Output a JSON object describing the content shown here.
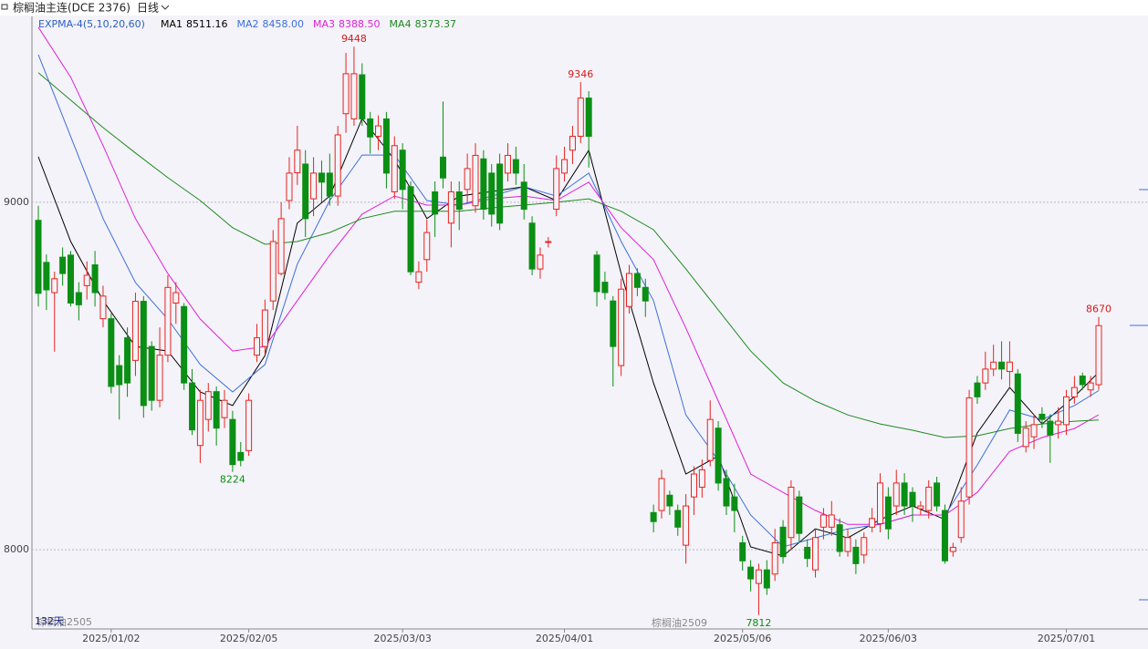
{
  "header": {
    "title": "棕榈油主连(DCE 2376)",
    "period": "日线"
  },
  "chart_data": {
    "type": "candlestick",
    "indicator": "EXPMA-4(5,10,20,60)",
    "categories": [
      null,
      null,
      null,
      null,
      null,
      null,
      null,
      null,
      null,
      "2025/01/02",
      null,
      null,
      null,
      null,
      null,
      null,
      null,
      null,
      null,
      null,
      null,
      null,
      null,
      null,
      null,
      null,
      "2025/02/05",
      null,
      null,
      null,
      null,
      null,
      null,
      null,
      null,
      null,
      null,
      null,
      null,
      null,
      null,
      null,
      null,
      null,
      null,
      "2025/03/03",
      null,
      null,
      null,
      null,
      null,
      null,
      null,
      null,
      null,
      null,
      null,
      null,
      null,
      null,
      null,
      null,
      null,
      null,
      null,
      "2025/04/01",
      null,
      null,
      null,
      null,
      null,
      null,
      null,
      null,
      null,
      null,
      null,
      null,
      null,
      null,
      null,
      null,
      null,
      null,
      null,
      null,
      null,
      "2025/05/06",
      null,
      null,
      null,
      null,
      null,
      null,
      null,
      null,
      null,
      null,
      null,
      null,
      null,
      null,
      null,
      null,
      null,
      "2025/06/03",
      null,
      null,
      null,
      null,
      null,
      null,
      null,
      null,
      null,
      null,
      null,
      null,
      null,
      null,
      null,
      null,
      null,
      null,
      null,
      null,
      null,
      "2025/07/01",
      null,
      null,
      null,
      null
    ],
    "open": [
      8948,
      8827,
      8740,
      8842,
      8848,
      8740,
      8760,
      8820,
      8665,
      8665,
      8530,
      8610,
      8545,
      8715,
      8585,
      8430,
      8560,
      8710,
      8700,
      8480,
      8300,
      8375,
      8455,
      8380,
      8375,
      8280,
      8285,
      8560,
      8585,
      8716,
      8795,
      9005,
      9085,
      9110,
      9010,
      9084,
      9084,
      9018,
      9255,
      9240,
      9367,
      9240,
      9190,
      9240,
      9030,
      9150,
      9045,
      8770,
      8835,
      9030,
      9130,
      8940,
      9030,
      9037,
      8990,
      9125,
      9084,
      9110,
      9084,
      9123,
      9058,
      8940,
      8808,
      8885,
      8980,
      9084,
      9150,
      9190,
      9300,
      8848,
      8770,
      8716,
      8530,
      8700,
      8795,
      8755,
      8107,
      8113,
      8157,
      8113,
      8013,
      8152,
      8180,
      8257,
      8350,
      8205,
      8152,
      8020,
      7950,
      7903,
      7942,
      7930,
      8065,
      8035,
      8152,
      8007,
      7942,
      8065,
      8065,
      8072,
      7995,
      8007,
      7985,
      8065,
      8075,
      8152,
      8126,
      8192,
      8165,
      8118,
      8113,
      8192,
      8113,
      7995,
      8035,
      8152,
      8480,
      8480,
      8520,
      8540,
      8513,
      8506,
      8297,
      8325,
      8390,
      8370,
      8360,
      8360,
      8440,
      8500,
      8460,
      8475
    ],
    "high": [
      8990,
      8850,
      8800,
      8870,
      8860,
      8770,
      8830,
      8860,
      8760,
      8680,
      8560,
      8640,
      8740,
      8730,
      8600,
      8640,
      8790,
      8770,
      8710,
      8520,
      8460,
      8480,
      8470,
      8460,
      8400,
      8310,
      8450,
      8650,
      8720,
      8920,
      9000,
      9130,
      9220,
      9150,
      9130,
      9120,
      9140,
      9220,
      9430,
      9448,
      9400,
      9260,
      9250,
      9260,
      9190,
      9170,
      9060,
      8830,
      8950,
      9060,
      9290,
      9060,
      9060,
      9140,
      9170,
      9150,
      9110,
      9140,
      9170,
      9160,
      9110,
      8960,
      8870,
      8900,
      9135,
      9160,
      9220,
      9346,
      9320,
      8860,
      8800,
      8730,
      8780,
      8820,
      8810,
      8780,
      8130,
      8230,
      8170,
      8130,
      8160,
      8240,
      8260,
      8430,
      8370,
      8230,
      8190,
      8040,
      7970,
      7960,
      7970,
      8060,
      8085,
      8200,
      8170,
      8030,
      8060,
      8120,
      8140,
      8090,
      8060,
      8030,
      8050,
      8120,
      8220,
      8180,
      8230,
      8220,
      8180,
      8140,
      8200,
      8210,
      8130,
      8020,
      8180,
      8460,
      8500,
      8570,
      8590,
      8600,
      8600,
      8520,
      8370,
      8390,
      8410,
      8390,
      8410,
      8460,
      8500,
      8510,
      8500,
      8670
    ],
    "low": [
      8700,
      8690,
      8570,
      8760,
      8700,
      8660,
      8720,
      8700,
      8640,
      8450,
      8375,
      8440,
      8500,
      8380,
      8400,
      8410,
      8540,
      8650,
      8460,
      8330,
      8250,
      8340,
      8300,
      8350,
      8224,
      8240,
      8270,
      8540,
      8560,
      8690,
      8790,
      8980,
      9050,
      8900,
      8960,
      9000,
      8990,
      8990,
      9200,
      9220,
      9220,
      9140,
      9150,
      9040,
      9010,
      8980,
      8790,
      8750,
      8800,
      8900,
      9040,
      8870,
      8920,
      9000,
      8970,
      8950,
      8930,
      8920,
      9060,
      9050,
      8950,
      8790,
      8780,
      8870,
      8960,
      9060,
      9110,
      9170,
      9100,
      8700,
      8720,
      8470,
      8500,
      8680,
      8730,
      8670,
      8050,
      8090,
      8100,
      8040,
      7960,
      8100,
      8150,
      8240,
      8170,
      8100,
      8050,
      7940,
      7880,
      7812,
      7870,
      7910,
      7960,
      8000,
      8020,
      7950,
      7920,
      8030,
      8040,
      7980,
      7980,
      7930,
      7960,
      8050,
      8050,
      8030,
      8100,
      8100,
      8080,
      8100,
      8090,
      8110,
      7960,
      7980,
      8020,
      8130,
      8420,
      8460,
      8500,
      8490,
      8470,
      8310,
      8280,
      8290,
      8350,
      8250,
      8320,
      8330,
      8420,
      8460,
      8440,
      8460
    ],
    "close": [
      8738,
      8748,
      8780,
      8795,
      8710,
      8705,
      8790,
      8740,
      8730,
      8470,
      8475,
      8480,
      8715,
      8415,
      8430,
      8560,
      8755,
      8740,
      8480,
      8345,
      8430,
      8455,
      8350,
      8430,
      8245,
      8257,
      8430,
      8610,
      8690,
      8887,
      8953,
      9084,
      9150,
      8953,
      9084,
      9058,
      9018,
      9194,
      9370,
      9370,
      9240,
      9188,
      9220,
      9084,
      9163,
      9037,
      8800,
      8800,
      8913,
      8966,
      9070,
      9030,
      8980,
      9097,
      9135,
      8980,
      8966,
      8940,
      9135,
      9084,
      8980,
      8808,
      8848,
      8887,
      9097,
      9123,
      9190,
      9300,
      9190,
      8743,
      8740,
      8585,
      8750,
      8795,
      8755,
      8716,
      8081,
      8205,
      8126,
      8065,
      8126,
      8218,
      8230,
      8375,
      8192,
      8126,
      8113,
      7968,
      7916,
      7942,
      7890,
      8020,
      7980,
      8180,
      8047,
      7975,
      8035,
      8100,
      8100,
      7995,
      8035,
      7960,
      8035,
      8090,
      8192,
      8060,
      8192,
      8126,
      8126,
      8126,
      8180,
      8126,
      7968,
      8007,
      8140,
      8437,
      8440,
      8520,
      8540,
      8520,
      8540,
      8335,
      8350,
      8360,
      8375,
      8330,
      8370,
      8440,
      8467,
      8475,
      8480,
      8645
    ],
    "up_color": "#e8231f",
    "down_color": "#0a8f14",
    "ylim": [
      7772,
      9535
    ],
    "yticks": [
      8000,
      9000
    ],
    "grid": true,
    "series": [
      {
        "name": "MA1",
        "color": "#000000",
        "legend_value": "8511.16",
        "x": [
          0,
          4,
          8,
          12,
          16,
          20,
          24,
          28,
          32,
          36,
          40,
          44,
          48,
          52,
          56,
          60,
          64,
          68,
          72,
          76,
          80,
          84,
          88,
          92,
          96,
          100,
          104,
          108,
          112,
          116,
          120,
          124,
          128,
          131
        ],
        "values": [
          9131,
          8887,
          8717,
          8585,
          8572,
          8454,
          8415,
          8559,
          8940,
          9018,
          9241,
          9123,
          8953,
          9018,
          9031,
          9045,
          9005,
          9150,
          8795,
          8480,
          8218,
          8270,
          8008,
          7982,
          8060,
          8034,
          8087,
          8126,
          8087,
          8336,
          8467,
          8362,
          8441,
          8511.16
        ]
      },
      {
        "name": "MA2",
        "color": "#3b6fdc",
        "legend_value": "8458.00",
        "x": [
          0,
          4,
          8,
          12,
          16,
          20,
          24,
          28,
          32,
          36,
          40,
          44,
          48,
          52,
          56,
          60,
          64,
          68,
          72,
          76,
          80,
          84,
          88,
          92,
          96,
          100,
          104,
          108,
          112,
          116,
          120,
          124,
          128,
          131
        ],
        "values": [
          9425,
          9189,
          8953,
          8769,
          8664,
          8533,
          8454,
          8533,
          8822,
          9005,
          9136,
          9136,
          9005,
          8992,
          9018,
          9045,
          9018,
          9084,
          8887,
          8717,
          8388,
          8257,
          8100,
          8008,
          8034,
          8060,
          8073,
          8100,
          8100,
          8244,
          8402,
          8375,
          8415,
          8458
        ]
      },
      {
        "name": "MA3",
        "color": "#e020d8",
        "legend_value": "8388.50",
        "x": [
          0,
          4,
          8,
          12,
          16,
          20,
          24,
          28,
          32,
          36,
          40,
          44,
          48,
          52,
          56,
          60,
          64,
          68,
          72,
          76,
          80,
          84,
          88,
          92,
          96,
          100,
          104,
          108,
          112,
          116,
          120,
          124,
          128,
          131
        ],
        "values": [
          9504,
          9360,
          9163,
          8953,
          8795,
          8664,
          8572,
          8585,
          8717,
          8848,
          8966,
          9018,
          8992,
          8992,
          9010,
          9018,
          9005,
          9058,
          8927,
          8835,
          8638,
          8428,
          8218,
          8165,
          8113,
          8073,
          8073,
          8100,
          8100,
          8165,
          8283,
          8323,
          8349,
          8388.5
        ]
      },
      {
        "name": "MA4",
        "color": "#1f8a1f",
        "legend_value": "8373.37",
        "x": [
          0,
          4,
          8,
          12,
          16,
          20,
          24,
          28,
          32,
          36,
          40,
          44,
          48,
          52,
          56,
          60,
          64,
          68,
          72,
          76,
          80,
          84,
          88,
          92,
          96,
          100,
          104,
          108,
          112,
          116,
          120,
          124,
          128,
          131
        ],
        "values": [
          9373,
          9294,
          9215,
          9142,
          9071,
          9005,
          8927,
          8879,
          8887,
          8913,
          8953,
          8974,
          8974,
          8974,
          8984,
          8992,
          9000,
          9010,
          8974,
          8921,
          8808,
          8690,
          8572,
          8480,
          8428,
          8388,
          8362,
          8344,
          8323,
          8328,
          8349,
          8362,
          8370,
          8373.37
        ]
      }
    ],
    "annotations": [
      9448,
      9346,
      8224,
      7812,
      8670
    ],
    "notes": [
      "132天",
      "棕榈油2505",
      "棕榈油2509"
    ]
  }
}
